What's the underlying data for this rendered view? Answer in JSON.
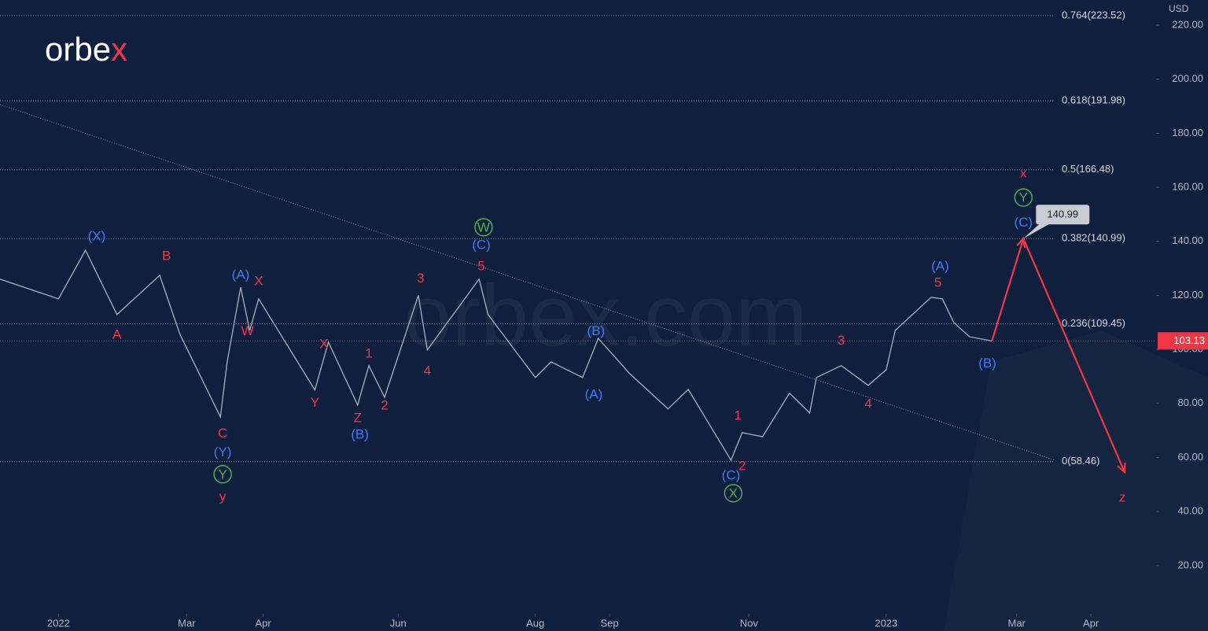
{
  "chart_data": {
    "type": "line",
    "logo": {
      "text": "orbe",
      "accent": "x"
    },
    "watermark": "orbex.com",
    "currency": "USD",
    "xlim": [
      -26,
      488
    ],
    "xticks": [
      {
        "value": 0,
        "label": "2022"
      },
      {
        "value": 57,
        "label": "Mar"
      },
      {
        "value": 91,
        "label": "Apr"
      },
      {
        "value": 151,
        "label": "Jun"
      },
      {
        "value": 212,
        "label": "Aug"
      },
      {
        "value": 245,
        "label": "Sep"
      },
      {
        "value": 307,
        "label": "Nov"
      },
      {
        "value": 368,
        "label": "2023"
      },
      {
        "value": 426,
        "label": "Mar"
      },
      {
        "value": 459,
        "label": "Apr"
      }
    ],
    "ylim": [
      2.2,
      229.3
    ],
    "yticks": [
      {
        "value": 20,
        "label": "20.00"
      },
      {
        "value": 40,
        "label": "40.00"
      },
      {
        "value": 60,
        "label": "60.00"
      },
      {
        "value": 80,
        "label": "80.00"
      },
      {
        "value": 100,
        "label": "100.00"
      },
      {
        "value": 120,
        "label": "120.00"
      },
      {
        "value": 140,
        "label": "140.00"
      },
      {
        "value": 160,
        "label": "160.00"
      },
      {
        "value": 180,
        "label": "180.00"
      },
      {
        "value": 200,
        "label": "200.00"
      },
      {
        "value": 220,
        "label": "220.00"
      }
    ],
    "color": "#a7b0c2",
    "x": [
      -26,
      0,
      12,
      26,
      45,
      54,
      72,
      75,
      81,
      85,
      89,
      114,
      120,
      133,
      138,
      145,
      160,
      164,
      187,
      191,
      212,
      219,
      233,
      240,
      254,
      271,
      280,
      299,
      304,
      313,
      325,
      334,
      337,
      348,
      360,
      368,
      372,
      388,
      393,
      398,
      405,
      415
    ],
    "values": [
      126,
      118.7,
      136.7,
      112.9,
      127.4,
      105.6,
      75,
      95.4,
      123,
      107,
      118.7,
      85,
      102.7,
      79.4,
      94,
      82.3,
      120,
      99.8,
      126,
      112.9,
      89.6,
      95.4,
      89.6,
      104.1,
      91,
      78,
      85.2,
      59,
      69.2,
      67.7,
      83.8,
      76.5,
      89.6,
      94,
      86.7,
      92.5,
      107,
      119.3,
      118.7,
      110,
      104.7,
      103.13
    ],
    "last_price": 103.13,
    "last_price_color": "#f23645",
    "forecast": {
      "color": "#f23645",
      "x": [
        415,
        429,
        474
      ],
      "values": [
        103.13,
        140.99,
        54.6
      ]
    },
    "target": 140.99,
    "trendline": {
      "x": [
        -26,
        443
      ],
      "values": [
        190.6,
        59
      ]
    },
    "fib_levels": [
      {
        "value": 223.52,
        "label": "0.764(223.52)"
      },
      {
        "value": 191.98,
        "label": "0.618(191.98)"
      },
      {
        "value": 166.48,
        "label": "0.5(166.48)"
      },
      {
        "value": 140.99,
        "label": "0.382(140.99)"
      },
      {
        "value": 109.45,
        "label": "0.236(109.45)"
      },
      {
        "value": 58.46,
        "label": "0(58.46)"
      }
    ],
    "wave_labels": [
      {
        "text": "(X)",
        "x": 17,
        "y": 142,
        "color": "#3d7bf5"
      },
      {
        "text": "B",
        "x": 48,
        "y": 134.7,
        "color": "#f23645"
      },
      {
        "text": "A",
        "x": 26,
        "y": 105.6,
        "color": "#f23645"
      },
      {
        "text": "(A)",
        "x": 81,
        "y": 127.7,
        "color": "#3d7bf5"
      },
      {
        "text": "X",
        "x": 89,
        "y": 125.4,
        "color": "#f23645"
      },
      {
        "text": "W",
        "x": 84,
        "y": 106.8,
        "color": "#f23645"
      },
      {
        "text": "C",
        "x": 73,
        "y": 69,
        "color": "#f23645"
      },
      {
        "text": "(Y)",
        "x": 73,
        "y": 62,
        "color": "#3d7bf5"
      },
      {
        "text": "Y",
        "x": 73,
        "y": 53.8,
        "color": "#4caf50",
        "circle": true
      },
      {
        "text": "y",
        "x": 73,
        "y": 45.6,
        "color": "#f23645"
      },
      {
        "text": "X",
        "x": 118,
        "y": 102,
        "color": "#f23645"
      },
      {
        "text": "Y",
        "x": 114,
        "y": 80.3,
        "color": "#f23645"
      },
      {
        "text": "1",
        "x": 138,
        "y": 98.6,
        "color": "#f23645"
      },
      {
        "text": "Z",
        "x": 133,
        "y": 74.7,
        "color": "#f23645"
      },
      {
        "text": "2",
        "x": 145,
        "y": 79.4,
        "color": "#f23645"
      },
      {
        "text": "(B)",
        "x": 134,
        "y": 68.6,
        "color": "#3d7bf5"
      },
      {
        "text": "3",
        "x": 161,
        "y": 126.3,
        "color": "#f23645"
      },
      {
        "text": "4",
        "x": 164,
        "y": 92.2,
        "color": "#f23645"
      },
      {
        "text": "W",
        "x": 189,
        "y": 145.2,
        "color": "#4caf50",
        "circle": true
      },
      {
        "text": "(C)",
        "x": 188,
        "y": 138.8,
        "color": "#3d7bf5"
      },
      {
        "text": "5",
        "x": 188,
        "y": 130.9,
        "color": "#f23645"
      },
      {
        "text": "(B)",
        "x": 239,
        "y": 106.8,
        "color": "#3d7bf5"
      },
      {
        "text": "(A)",
        "x": 238,
        "y": 83.5,
        "color": "#3d7bf5"
      },
      {
        "text": "1",
        "x": 302,
        "y": 75.6,
        "color": "#f23645"
      },
      {
        "text": "2",
        "x": 304,
        "y": 57,
        "color": "#f23645"
      },
      {
        "text": "(C)",
        "x": 299,
        "y": 53.5,
        "color": "#3d7bf5"
      },
      {
        "text": "X",
        "x": 300,
        "y": 46.8,
        "color": "#4caf50",
        "circle": true
      },
      {
        "text": "3",
        "x": 348,
        "y": 103.3,
        "color": "#f23645"
      },
      {
        "text": "4",
        "x": 360,
        "y": 80,
        "color": "#f23645"
      },
      {
        "text": "(A)",
        "x": 392,
        "y": 130.9,
        "color": "#3d7bf5"
      },
      {
        "text": "5",
        "x": 391,
        "y": 124.8,
        "color": "#f23645"
      },
      {
        "text": "(B)",
        "x": 413,
        "y": 95,
        "color": "#3d7bf5"
      },
      {
        "text": "x",
        "x": 429,
        "y": 165.3,
        "color": "#f23645"
      },
      {
        "text": "Y",
        "x": 429,
        "y": 156.2,
        "color": "#4caf50",
        "circle": true
      },
      {
        "text": "(C)",
        "x": 429,
        "y": 147,
        "color": "#3d7bf5"
      },
      {
        "text": "z",
        "x": 473,
        "y": 45.3,
        "color": "#f23645"
      }
    ]
  }
}
